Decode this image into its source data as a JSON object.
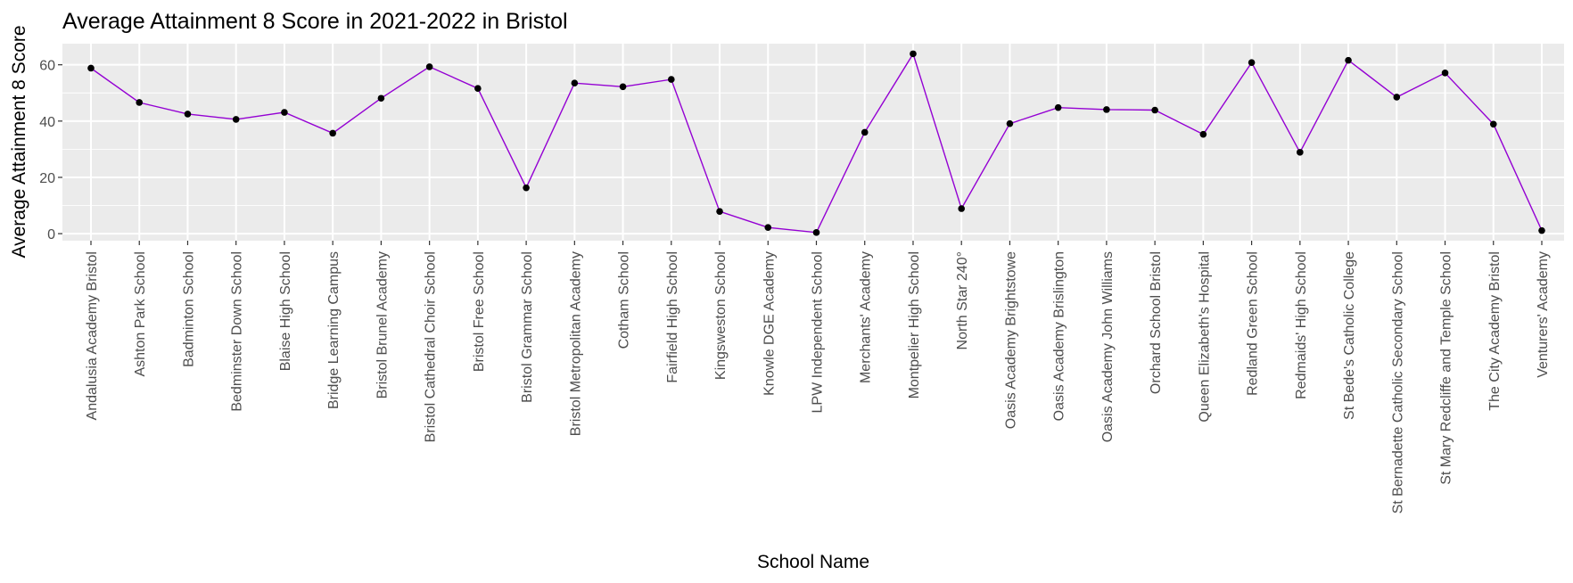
{
  "chart_data": {
    "type": "line",
    "title": "Average Attainment 8 Score in 2021-2022 in Bristol",
    "xlabel": "School Name",
    "ylabel": "Average Attainment 8 Score",
    "ylim": [
      -2.5,
      67.5
    ],
    "yticks": [
      0,
      20,
      40,
      60
    ],
    "grid": true,
    "colors": {
      "line": "#9400D3",
      "points": "#000000",
      "panel": "#EBEBEB",
      "grid": "#FFFFFF"
    },
    "categories": [
      "Andalusia Academy Bristol",
      "Ashton Park School",
      "Badminton School",
      "Bedminster Down School",
      "Blaise High School",
      "Bridge Learning Campus",
      "Bristol Brunel Academy",
      "Bristol Cathedral Choir School",
      "Bristol Free School",
      "Bristol Grammar School",
      "Bristol Metropolitan Academy",
      "Cotham School",
      "Fairfield High School",
      "Kingsweston School",
      "Knowle DGE Academy",
      "LPW Independent School",
      "Merchants' Academy",
      "Montpelier High School",
      "North Star 240°",
      "Oasis Academy Brightstowe",
      "Oasis Academy Brislington",
      "Oasis Academy John Williams",
      "Orchard School Bristol",
      "Queen Elizabeth's Hospital",
      "Redland Green School",
      "Redmaids' High School",
      "St Bede's Catholic College",
      "St Bernadette Catholic Secondary School",
      "St Mary Redcliffe and Temple School",
      "The City Academy Bristol",
      "Venturers' Academy"
    ],
    "values": [
      58.8,
      46.6,
      42.5,
      40.6,
      43.1,
      35.7,
      48.1,
      59.3,
      51.6,
      16.3,
      53.5,
      52.2,
      54.8,
      7.9,
      2.2,
      0.4,
      36.0,
      63.9,
      8.9,
      39.1,
      44.8,
      44.1,
      43.9,
      35.3,
      60.8,
      28.9,
      61.6,
      48.5,
      57.1,
      38.9,
      1.1
    ]
  }
}
